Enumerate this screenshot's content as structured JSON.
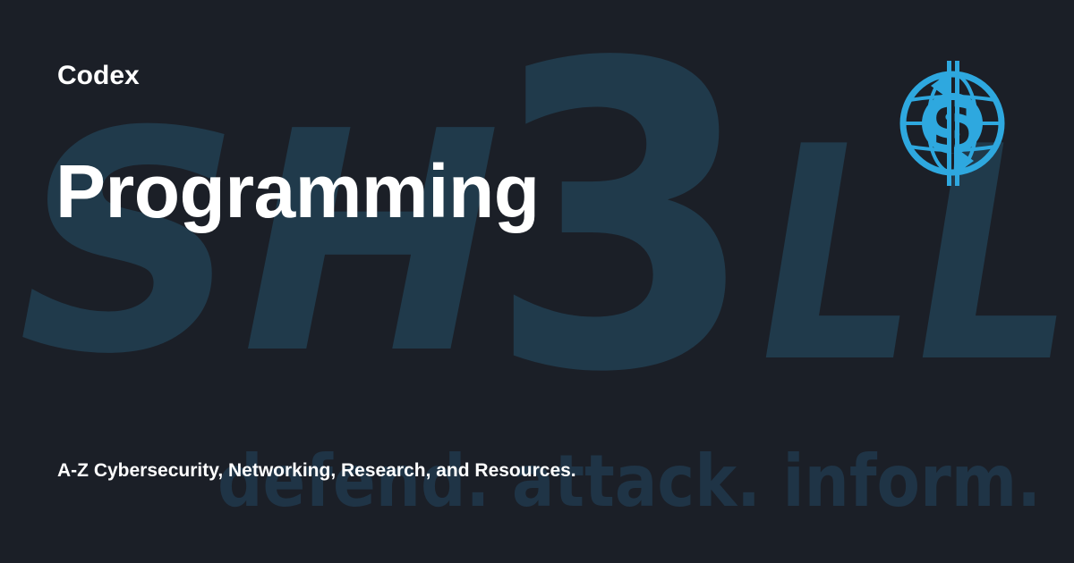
{
  "header": {
    "site_name": "Codex"
  },
  "main": {
    "title": "Programming",
    "description": "A-Z Cybersecurity, Networking, Research, and Resources."
  },
  "background": {
    "watermark_left": "SH",
    "watermark_three": "3",
    "watermark_right": "LL",
    "watermark_tagline": "defend. attack. inform."
  },
  "logo": {
    "icon": "globe-dollar-icon",
    "glyph": "$"
  },
  "colors": {
    "background": "#1b1f27",
    "watermark": "#203a4b",
    "accent": "#2ea8df",
    "text": "#ffffff"
  }
}
